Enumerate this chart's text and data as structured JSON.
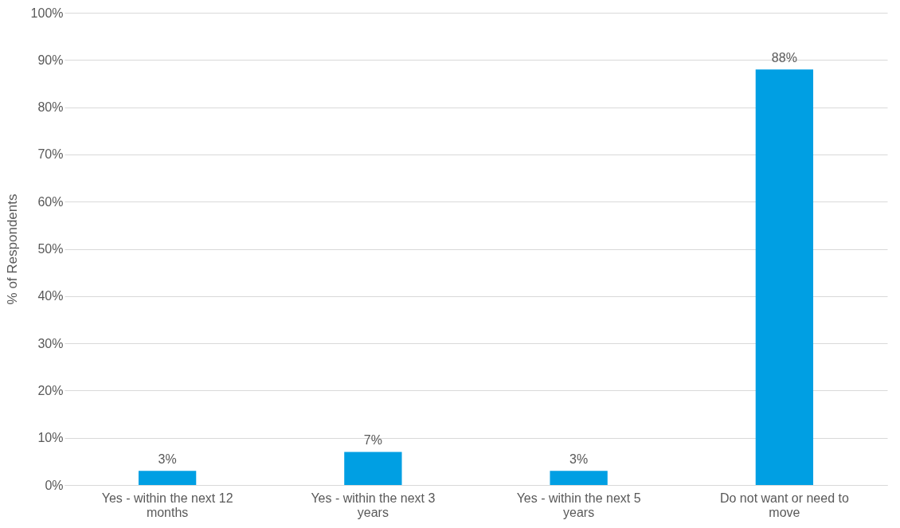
{
  "chart_data": {
    "type": "bar",
    "ylabel": "% of Respondents",
    "categories": [
      "Yes - within the next 12 months",
      "Yes - within the next 3 years",
      "Yes - within the next 5 years",
      "Do not want or need to move"
    ],
    "values": [
      3,
      7,
      3,
      88
    ],
    "value_labels": [
      "3%",
      "7%",
      "3%",
      "88%"
    ],
    "color": "#009fe3",
    "ylim": [
      0,
      100
    ],
    "yticks": [
      {
        "value": 0,
        "label": "0%"
      },
      {
        "value": 10,
        "label": "10%"
      },
      {
        "value": 20,
        "label": "20%"
      },
      {
        "value": 30,
        "label": "30%"
      },
      {
        "value": 40,
        "label": "40%"
      },
      {
        "value": 50,
        "label": "50%"
      },
      {
        "value": 60,
        "label": "60%"
      },
      {
        "value": 70,
        "label": "70%"
      },
      {
        "value": 80,
        "label": "80%"
      },
      {
        "value": 90,
        "label": "90%"
      },
      {
        "value": 100,
        "label": "100%"
      }
    ],
    "grid": "y"
  }
}
